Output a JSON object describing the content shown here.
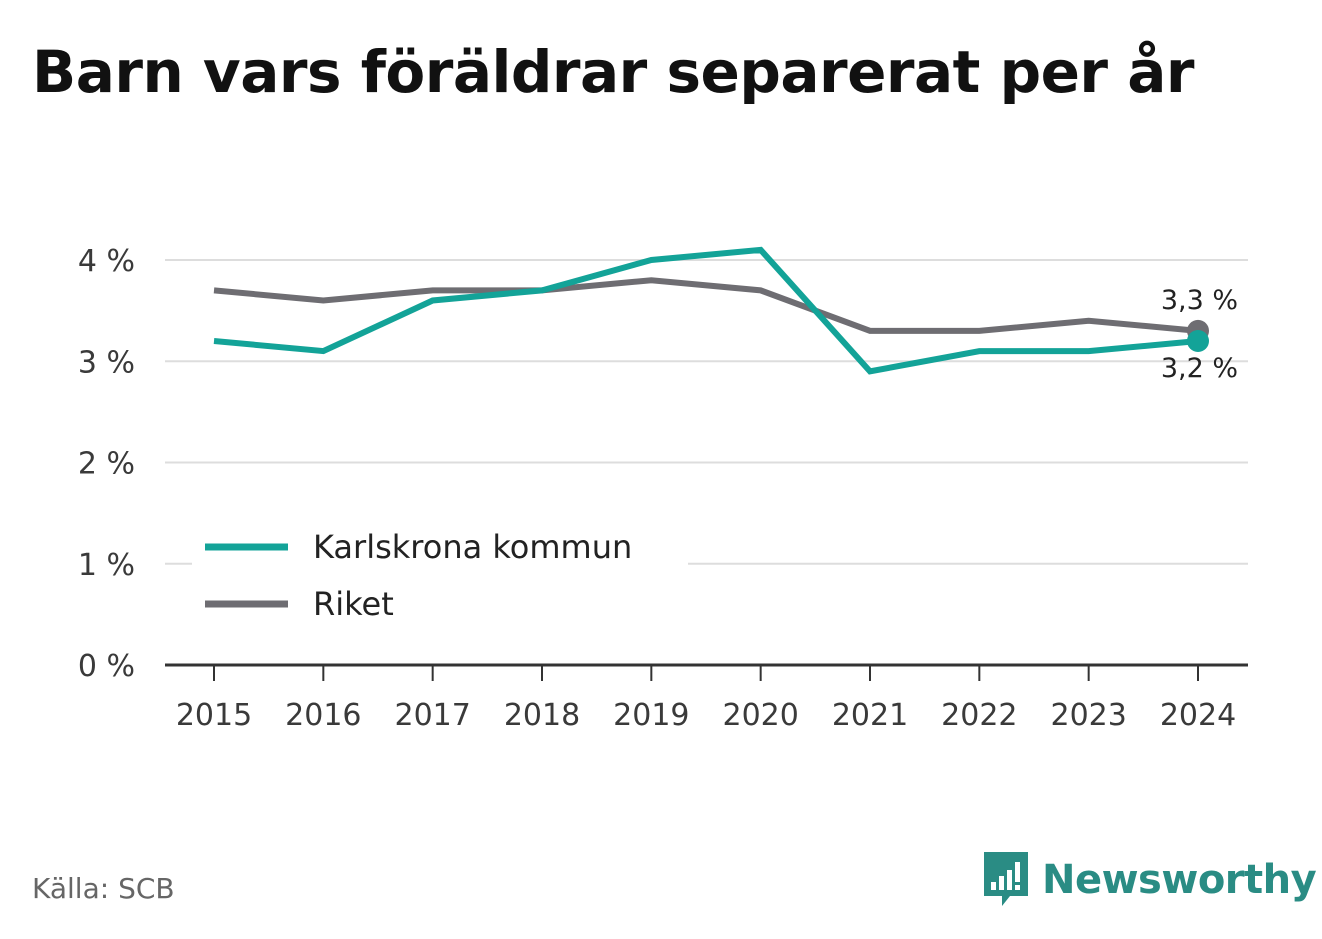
{
  "title": "Barn vars föräldrar separerat per år",
  "source": "Källa: SCB",
  "brand": {
    "name": "Newsworthy",
    "icon": "newsworthy-logo-icon"
  },
  "colors": {
    "karlskrona": "#13a398",
    "riket": "#6e6d72",
    "grid": "#dddddd",
    "axis": "#333333",
    "brand": "#2a8c84"
  },
  "chart_data": {
    "type": "line",
    "title": "Barn vars föräldrar separerat per år",
    "x": [
      "2015",
      "2016",
      "2017",
      "2018",
      "2019",
      "2020",
      "2021",
      "2022",
      "2023",
      "2024"
    ],
    "series": [
      {
        "name": "Karlskrona kommun",
        "values": [
          3.2,
          3.1,
          3.6,
          3.7,
          4.0,
          4.1,
          2.9,
          3.1,
          3.1,
          3.2
        ],
        "end_label": "3,2 %"
      },
      {
        "name": "Riket",
        "values": [
          3.7,
          3.6,
          3.7,
          3.7,
          3.8,
          3.7,
          3.3,
          3.3,
          3.4,
          3.3
        ],
        "end_label": "3,3 %"
      }
    ],
    "y_ticks": [
      {
        "value": 0,
        "label": "0 %"
      },
      {
        "value": 1,
        "label": "1 %"
      },
      {
        "value": 2,
        "label": "2 %"
      },
      {
        "value": 3,
        "label": "3 %"
      },
      {
        "value": 4,
        "label": "4 %"
      }
    ],
    "ylim": [
      0,
      4
    ],
    "grid": true,
    "legend_position": "bottom-left"
  }
}
